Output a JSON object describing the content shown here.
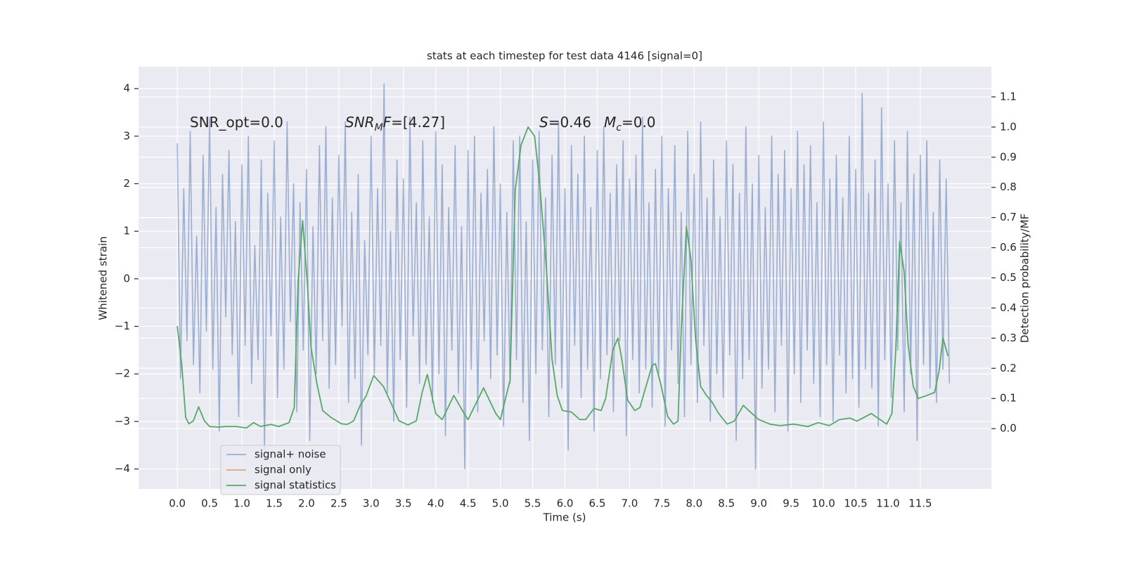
{
  "chart_data": {
    "type": "line",
    "title": "stats at each timestep for test data 4146 [signal=0]",
    "xlabel": "Time (s)",
    "ylabel": "Whitened strain",
    "y2label": "Detection probability/MF",
    "xlim": [
      -0.6,
      12.6
    ],
    "ylim": [
      -4.42,
      4.46
    ],
    "y2lim": [
      -0.2,
      1.2
    ],
    "xticks": [
      {
        "value": 0,
        "label": "0.0"
      },
      {
        "value": 0.5,
        "label": "0.5"
      },
      {
        "value": 1,
        "label": "1.0"
      },
      {
        "value": 1.5,
        "label": "1.5"
      },
      {
        "value": 2,
        "label": "2.0"
      },
      {
        "value": 2.5,
        "label": "2.5"
      },
      {
        "value": 3,
        "label": "3.0"
      },
      {
        "value": 3.5,
        "label": "3.5"
      },
      {
        "value": 4,
        "label": "4.0"
      },
      {
        "value": 4.5,
        "label": "4.5"
      },
      {
        "value": 5,
        "label": "5.0"
      },
      {
        "value": 5.5,
        "label": "5.5"
      },
      {
        "value": 6,
        "label": "6.0"
      },
      {
        "value": 6.5,
        "label": "6.5"
      },
      {
        "value": 7,
        "label": "7.0"
      },
      {
        "value": 7.5,
        "label": "7.5"
      },
      {
        "value": 8,
        "label": "8.0"
      },
      {
        "value": 8.5,
        "label": "8.5"
      },
      {
        "value": 9,
        "label": "9.0"
      },
      {
        "value": 9.5,
        "label": "9.5"
      },
      {
        "value": 10,
        "label": "10.0"
      },
      {
        "value": 10.5,
        "label": "10.5"
      },
      {
        "value": 11,
        "label": "11.0"
      },
      {
        "value": 11.5,
        "label": "11.5"
      }
    ],
    "yticks": [
      {
        "value": -4,
        "label": "−4"
      },
      {
        "value": -3,
        "label": "−3"
      },
      {
        "value": -2,
        "label": "−2"
      },
      {
        "value": -1,
        "label": "−1"
      },
      0,
      1,
      2,
      3,
      4
    ],
    "y2ticks": [
      {
        "value": 0,
        "label": "0.0"
      },
      0.1,
      0.2,
      0.3,
      0.4,
      0.5,
      0.6,
      0.7,
      0.8,
      0.9,
      {
        "value": 1,
        "label": "1.0"
      },
      1.1
    ],
    "grid": true,
    "legend_loc": "lower left",
    "annotations": [
      [
        {
          "text": "SNR_opt=0.0"
        }
      ],
      [
        {
          "text": "SNR",
          "italic": true
        },
        {
          "text": "M",
          "italic": true,
          "sub": true
        },
        {
          "text": "F",
          "italic": true
        },
        {
          "text": "=[4.27]"
        }
      ],
      [
        {
          "text": "S",
          "italic": true
        },
        {
          "text": "=0.46"
        }
      ],
      [
        {
          "text": "M",
          "italic": true
        },
        {
          "text": "c",
          "italic": true,
          "sub": true
        },
        {
          "text": "=0.0"
        }
      ]
    ],
    "series": [
      {
        "name": "signal+ noise",
        "color": "#4c72b0",
        "alpha": 0.5,
        "axis": "y",
        "x": [
          0,
          0.05,
          0.1,
          0.15,
          0.2,
          0.25,
          0.3,
          0.35,
          0.4,
          0.45,
          0.5,
          0.55,
          0.6,
          0.65,
          0.7,
          0.75,
          0.8,
          0.85,
          0.9,
          0.95,
          1,
          1.05,
          1.1,
          1.15,
          1.2,
          1.25,
          1.3,
          1.35,
          1.4,
          1.45,
          1.5,
          1.55,
          1.6,
          1.65,
          1.7,
          1.75,
          1.8,
          1.85,
          1.9,
          1.95,
          2,
          2.05,
          2.1,
          2.15,
          2.2,
          2.25,
          2.3,
          2.35,
          2.4,
          2.45,
          2.5,
          2.55,
          2.6,
          2.65,
          2.7,
          2.75,
          2.8,
          2.85,
          2.9,
          2.95,
          3,
          3.05,
          3.1,
          3.15,
          3.2,
          3.25,
          3.3,
          3.35,
          3.4,
          3.45,
          3.5,
          3.55,
          3.6,
          3.65,
          3.7,
          3.75,
          3.8,
          3.85,
          3.9,
          3.95,
          4,
          4.05,
          4.1,
          4.15,
          4.2,
          4.25,
          4.3,
          4.35,
          4.4,
          4.45,
          4.5,
          4.55,
          4.6,
          4.65,
          4.7,
          4.75,
          4.8,
          4.85,
          4.9,
          4.95,
          5,
          5.05,
          5.1,
          5.15,
          5.2,
          5.25,
          5.3,
          5.35,
          5.4,
          5.45,
          5.5,
          5.55,
          5.6,
          5.65,
          5.7,
          5.75,
          5.8,
          5.85,
          5.9,
          5.95,
          6,
          6.05,
          6.1,
          6.15,
          6.2,
          6.25,
          6.3,
          6.35,
          6.4,
          6.45,
          6.5,
          6.55,
          6.6,
          6.65,
          6.7,
          6.75,
          6.8,
          6.85,
          6.9,
          6.95,
          7,
          7.05,
          7.1,
          7.15,
          7.2,
          7.25,
          7.3,
          7.35,
          7.4,
          7.45,
          7.5,
          7.55,
          7.6,
          7.65,
          7.7,
          7.75,
          7.8,
          7.85,
          7.9,
          7.95,
          8,
          8.05,
          8.1,
          8.15,
          8.2,
          8.25,
          8.3,
          8.35,
          8.4,
          8.45,
          8.5,
          8.55,
          8.6,
          8.65,
          8.7,
          8.75,
          8.8,
          8.85,
          8.9,
          8.95,
          9,
          9.05,
          9.1,
          9.15,
          9.2,
          9.25,
          9.3,
          9.35,
          9.4,
          9.45,
          9.5,
          9.55,
          9.6,
          9.65,
          9.7,
          9.75,
          9.8,
          9.85,
          9.9,
          9.95,
          10,
          10.05,
          10.1,
          10.15,
          10.2,
          10.25,
          10.3,
          10.35,
          10.4,
          10.45,
          10.5,
          10.55,
          10.6,
          10.65,
          10.7,
          10.75,
          10.8,
          10.85,
          10.9,
          10.95,
          11,
          11.05,
          11.1,
          11.15,
          11.2,
          11.25,
          11.3,
          11.35,
          11.4,
          11.45,
          11.5,
          11.55,
          11.6,
          11.65,
          11.7,
          11.75,
          11.8,
          11.85,
          11.9,
          11.95
        ],
        "values": [
          2.85,
          -2.1,
          1.9,
          -1.3,
          3.1,
          -1.8,
          0.9,
          -2.4,
          2.6,
          -1.1,
          3.4,
          -1.9,
          1.5,
          -3.2,
          2.2,
          -0.8,
          2.7,
          -1.6,
          1.2,
          -2.9,
          2.4,
          -1.4,
          3.0,
          -2.2,
          0.7,
          -1.7,
          2.5,
          -3.6,
          1.8,
          -1.2,
          2.9,
          -2.5,
          1.3,
          -1.9,
          3.3,
          -0.9,
          2.0,
          -2.8,
          1.6,
          -1.5,
          2.3,
          -3.4,
          1.1,
          -2.0,
          2.8,
          -1.3,
          3.2,
          -2.3,
          1.7,
          -1.8,
          2.6,
          -1.0,
          3.3,
          -2.6,
          1.4,
          -2.1,
          2.2,
          -3.5,
          0.8,
          -1.6,
          3.0,
          -2.0,
          1.9,
          -1.4,
          4.1,
          -2.4,
          1.0,
          -3.0,
          2.5,
          -1.7,
          2.1,
          -2.7,
          3.4,
          -1.2,
          1.6,
          -2.2,
          2.9,
          -1.8,
          1.3,
          -2.6,
          3.1,
          -2.0,
          2.4,
          -3.3,
          1.5,
          -1.5,
          2.8,
          -2.4,
          1.1,
          -4.0,
          2.7,
          -1.9,
          3.0,
          -2.8,
          1.8,
          -1.3,
          2.3,
          -2.1,
          3.2,
          -1.6,
          2.0,
          -3.1,
          1.4,
          -2.2,
          2.9,
          -1.7,
          3.0,
          -2.6,
          1.2,
          -3.4,
          2.5,
          -2.0,
          3.1,
          -1.5,
          1.7,
          -2.9,
          2.6,
          -1.8,
          3.3,
          -2.3,
          1.9,
          -3.6,
          2.8,
          -1.4,
          2.2,
          -2.5,
          3.0,
          -1.9,
          1.5,
          -3.2,
          2.7,
          -2.1,
          3.2,
          -1.6,
          1.8,
          -2.8,
          2.4,
          -1.3,
          2.9,
          -3.3,
          2.1,
          -1.7,
          2.6,
          -2.4,
          3.4,
          -1.9,
          1.6,
          -2.7,
          2.3,
          -2.0,
          3.0,
          -3.1,
          1.9,
          -1.5,
          2.8,
          -2.2,
          1.4,
          -2.9,
          3.1,
          -1.8,
          2.2,
          -2.6,
          3.3,
          -1.4,
          1.7,
          -3.0,
          2.5,
          -2.0,
          1.3,
          -2.5,
          2.9,
          -1.6,
          2.4,
          -3.4,
          1.8,
          -2.1,
          3.2,
          -1.7,
          2.0,
          -4.0,
          2.6,
          -2.3,
          1.5,
          -1.9,
          3.0,
          -2.8,
          2.2,
          -1.4,
          2.7,
          -3.2,
          1.9,
          -2.0,
          3.1,
          -2.6,
          2.4,
          -1.5,
          2.8,
          -2.2,
          1.6,
          -2.9,
          3.3,
          -1.8,
          2.1,
          -3.0,
          2.6,
          -1.6,
          1.7,
          -2.4,
          3.0,
          -2.1,
          2.3,
          -2.7,
          3.9,
          -1.9,
          1.8,
          -2.3,
          2.5,
          -3.1,
          3.6,
          -1.7,
          2.0,
          -2.5,
          2.9,
          -1.5,
          1.6,
          -2.8,
          3.1,
          -2.0,
          2.2,
          -3.4,
          2.6,
          -1.8,
          2.9,
          -2.3,
          1.4,
          -2.6,
          2.5,
          -1.9,
          2.1,
          -2.2
        ]
      },
      {
        "name": "signal only",
        "color": "#dd8452",
        "alpha": 0.7,
        "axis": "y",
        "x": [],
        "values": []
      },
      {
        "name": "signal statistics",
        "color": "#55a868",
        "alpha": 1,
        "axis": "y2",
        "x": [
          0,
          0.07,
          0.13,
          0.18,
          0.25,
          0.33,
          0.42,
          0.5,
          0.64,
          0.75,
          0.91,
          1.07,
          1.18,
          1.29,
          1.45,
          1.57,
          1.73,
          1.81,
          1.87,
          1.94,
          2.01,
          2.07,
          2.16,
          2.25,
          2.38,
          2.54,
          2.63,
          2.73,
          2.83,
          2.92,
          3.04,
          3.19,
          3.31,
          3.43,
          3.57,
          3.7,
          3.79,
          3.87,
          4.0,
          4.1,
          4.28,
          4.44,
          4.5,
          4.74,
          4.93,
          5.0,
          5.15,
          5.23,
          5.32,
          5.43,
          5.53,
          5.61,
          5.71,
          5.8,
          5.88,
          5.96,
          6.1,
          6.23,
          6.32,
          6.45,
          6.56,
          6.63,
          6.74,
          6.82,
          6.88,
          6.97,
          7.08,
          7.16,
          7.24,
          7.35,
          7.4,
          7.48,
          7.59,
          7.68,
          7.75,
          7.8,
          7.88,
          7.95,
          8.02,
          8.1,
          8.19,
          8.27,
          8.38,
          8.51,
          8.62,
          8.76,
          8.87,
          9.0,
          9.17,
          9.33,
          9.54,
          9.76,
          9.92,
          10.09,
          10.25,
          10.41,
          10.52,
          10.74,
          10.98,
          11.06,
          11.12,
          11.18,
          11.25,
          11.31,
          11.39,
          11.47,
          11.6,
          11.72,
          11.79,
          11.85,
          11.93
        ],
        "values": [
          0.34,
          0.21,
          0.037,
          0.016,
          0.026,
          0.072,
          0.026,
          0.007,
          0.005,
          0.007,
          0.007,
          0.002,
          0.02,
          0.007,
          0.014,
          0.007,
          0.02,
          0.07,
          0.49,
          0.69,
          0.49,
          0.27,
          0.15,
          0.06,
          0.037,
          0.016,
          0.014,
          0.026,
          0.077,
          0.107,
          0.176,
          0.14,
          0.084,
          0.026,
          0.012,
          0.026,
          0.12,
          0.18,
          0.05,
          0.03,
          0.11,
          0.05,
          0.03,
          0.135,
          0.05,
          0.03,
          0.16,
          0.79,
          0.94,
          1.0,
          0.97,
          0.81,
          0.54,
          0.23,
          0.11,
          0.06,
          0.055,
          0.03,
          0.03,
          0.067,
          0.06,
          0.1,
          0.26,
          0.3,
          0.23,
          0.095,
          0.06,
          0.07,
          0.13,
          0.21,
          0.215,
          0.15,
          0.04,
          0.015,
          0.025,
          0.33,
          0.67,
          0.56,
          0.3,
          0.14,
          0.11,
          0.09,
          0.05,
          0.015,
          0.025,
          0.077,
          0.055,
          0.03,
          0.015,
          0.01,
          0.015,
          0.007,
          0.02,
          0.01,
          0.03,
          0.035,
          0.025,
          0.05,
          0.015,
          0.05,
          0.26,
          0.62,
          0.52,
          0.28,
          0.14,
          0.1,
          0.11,
          0.12,
          0.19,
          0.3,
          0.24
        ]
      }
    ]
  }
}
